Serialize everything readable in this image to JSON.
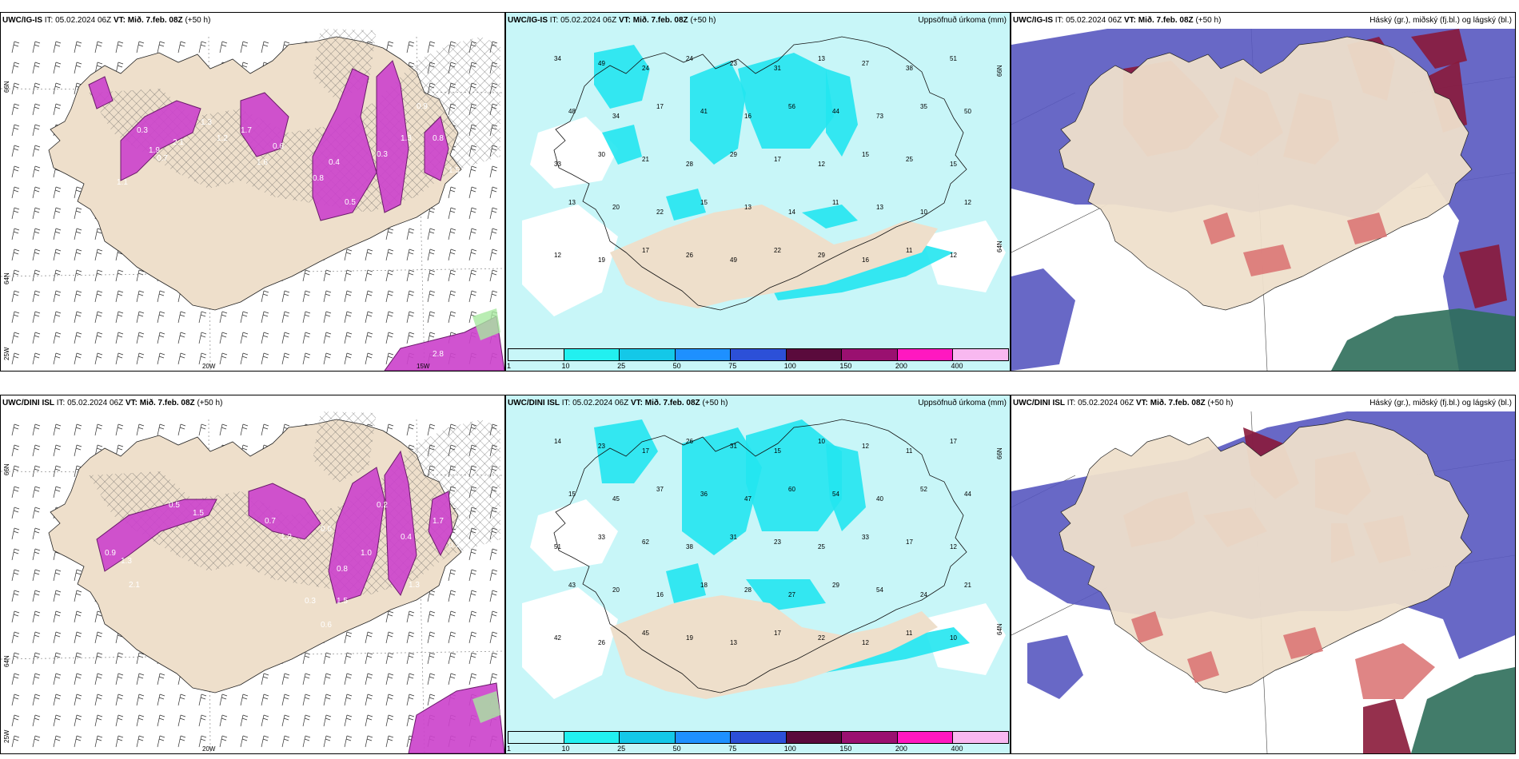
{
  "panels": [
    {
      "id": "p1",
      "model": "UWC/IG-IS",
      "it_label": "IT:",
      "it": "05.02.2024 06Z",
      "vt_label": "VT:",
      "vt": "Mið. 7.feb. 08Z",
      "lead": "(+50 h)",
      "right_title": "",
      "type": "precip-rate",
      "lat_labels": [
        "66N",
        "64N",
        "25W"
      ],
      "lon_labels": [
        "20W",
        "15W"
      ]
    },
    {
      "id": "p2",
      "model": "UWC/IG-IS",
      "it_label": "IT:",
      "it": "05.02.2024 06Z",
      "vt_label": "VT:",
      "vt": "Mið. 7.feb. 08Z",
      "lead": "(+50 h)",
      "right_title": "Uppsöfnuð úrkoma (mm)",
      "type": "accum",
      "lat_labels": [
        "66N",
        "64N"
      ],
      "lon_labels": []
    },
    {
      "id": "p3",
      "model": "UWC/IG-IS",
      "it_label": "IT:",
      "it": "05.02.2024 06Z",
      "vt_label": "VT:",
      "vt": "Mið. 7.feb. 08Z",
      "lead": "(+50 h)",
      "right_title": "Háský (gr.), miðský (fj.bl.) og lágský (bl.)",
      "type": "cloud",
      "lat_labels": [],
      "lon_labels": []
    },
    {
      "id": "p4",
      "model": "UWC/DINI ISL",
      "it_label": "IT:",
      "it": "05.02.2024 06Z",
      "vt_label": "VT:",
      "vt": "Mið. 7.feb. 08Z",
      "lead": "(+50 h)",
      "right_title": "",
      "type": "precip-rate",
      "lat_labels": [
        "66N",
        "64N",
        "25W"
      ],
      "lon_labels": [
        "20W"
      ]
    },
    {
      "id": "p5",
      "model": "UWC/DINI ISL",
      "it_label": "IT:",
      "it": "05.02.2024 06Z",
      "vt_label": "VT:",
      "vt": "Mið. 7.feb. 08Z",
      "lead": "(+50 h)",
      "right_title": "Uppsöfnuð úrkoma (mm)",
      "type": "accum",
      "lat_labels": [
        "66N",
        "64N"
      ],
      "lon_labels": []
    },
    {
      "id": "p6",
      "model": "UWC/DINI ISL",
      "it_label": "IT:",
      "it": "05.02.2024 06Z",
      "vt_label": "VT:",
      "vt": "Mið. 7.feb. 08Z",
      "lead": "(+50 h)",
      "right_title": "Háský (gr.), miðský (fj.bl.) og lágský (bl.)",
      "type": "cloud",
      "lat_labels": [],
      "lon_labels": []
    }
  ],
  "colorbar": {
    "labels": [
      "1",
      "10",
      "25",
      "50",
      "75",
      "100",
      "150",
      "200",
      "400"
    ],
    "colors": [
      "#c8f6f8",
      "#22f0f0",
      "#14c8e8",
      "#1e90ff",
      "#2c50d8",
      "#5a0a3c",
      "#9a1070",
      "#ff18c0",
      "#f8b8f0"
    ]
  },
  "accum_top_values": [
    "34",
    "49",
    "24",
    "24",
    "23",
    "31",
    "13",
    "27",
    "38",
    "51",
    "48",
    "34",
    "17",
    "41",
    "16",
    "56",
    "44",
    "73",
    "35",
    "50",
    "33",
    "30",
    "21",
    "28",
    "29",
    "17",
    "12",
    "15",
    "25",
    "15",
    "13",
    "20",
    "22",
    "15",
    "13",
    "14",
    "11",
    "13",
    "10",
    "12",
    "12",
    "19",
    "17",
    "26",
    "49",
    "22",
    "29",
    "16",
    "11",
    "12"
  ],
  "accum_bottom_values": [
    "14",
    "23",
    "17",
    "26",
    "31",
    "15",
    "10",
    "12",
    "11",
    "17",
    "15",
    "45",
    "37",
    "36",
    "47",
    "60",
    "54",
    "40",
    "52",
    "44",
    "51",
    "33",
    "62",
    "38",
    "31",
    "23",
    "25",
    "33",
    "17",
    "12",
    "43",
    "20",
    "16",
    "18",
    "28",
    "27",
    "29",
    "54",
    "24",
    "21",
    "42",
    "26",
    "45",
    "19",
    "13",
    "17",
    "22",
    "12",
    "11",
    "10"
  ],
  "precip_top_values": [
    "0.3",
    "1.9",
    "2.1",
    "0.7",
    "1.3",
    "1.2",
    "1.7",
    "1.6",
    "0.6",
    "0.8",
    "0.4",
    "0.5",
    "0.3",
    "1.3",
    "0.9",
    "0.8",
    "1.5",
    "1.1",
    "2.8"
  ],
  "precip_bottom_values": [
    "0.9",
    "1.3",
    "2.1",
    "0.5",
    "1.5",
    "0.7",
    "1.2",
    "0.6",
    "0.8",
    "1.0",
    "0.2",
    "0.4",
    "1.3",
    "1.7",
    "0.9",
    "1.5",
    "0.3",
    "0.6"
  ],
  "colors": {
    "land": "#eedfcb",
    "sea_light": "#c8f6f8",
    "cyan": "#22e6f0",
    "magenta": "#cc44cc",
    "navy": "#5858c0",
    "maroon": "#8a1a3a",
    "green": "#2e6e5a",
    "salmon": "#d97070"
  }
}
